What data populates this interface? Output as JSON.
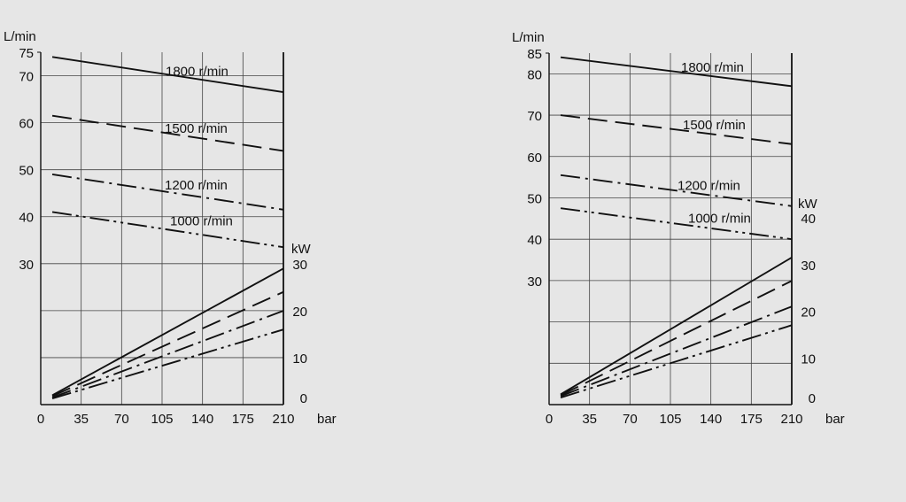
{
  "chart_data": [
    {
      "type": "line",
      "x_unit": "bar",
      "x_ticks": [
        0,
        35,
        70,
        105,
        140,
        175,
        210
      ],
      "xlim": [
        0,
        210
      ],
      "flow_unit": "L/min",
      "flow_ticks": [
        30,
        40,
        50,
        60,
        70,
        75
      ],
      "ylim": [
        0,
        75
      ],
      "power_unit": "kW",
      "power_ticks": [
        0,
        10,
        20,
        30
      ],
      "power_range": [
        0,
        30
      ],
      "grid": true,
      "flow_series": [
        {
          "name": "1800 r/min",
          "style": "solid",
          "x": [
            10,
            210
          ],
          "values": [
            74,
            66.5
          ]
        },
        {
          "name": "1500 r/min",
          "style": "dash",
          "x": [
            10,
            210
          ],
          "values": [
            61.5,
            54
          ]
        },
        {
          "name": "1200 r/min",
          "style": "dashdot",
          "x": [
            10,
            210
          ],
          "values": [
            49,
            41.5
          ]
        },
        {
          "name": "1000 r/min",
          "style": "dashdotdot",
          "x": [
            10,
            210
          ],
          "values": [
            41,
            33.5
          ]
        }
      ],
      "power_series": [
        {
          "style": "solid",
          "x": [
            10,
            210
          ],
          "values": [
            2,
            29
          ]
        },
        {
          "style": "dash",
          "x": [
            10,
            210
          ],
          "values": [
            1.8,
            24
          ]
        },
        {
          "style": "dashdot",
          "x": [
            10,
            210
          ],
          "values": [
            1.5,
            20
          ]
        },
        {
          "style": "dashdotdot",
          "x": [
            10,
            210
          ],
          "values": [
            1.3,
            16
          ]
        }
      ]
    },
    {
      "type": "line",
      "x_unit": "bar",
      "x_ticks": [
        0,
        35,
        70,
        105,
        140,
        175,
        210
      ],
      "xlim": [
        0,
        210
      ],
      "flow_unit": "L/min",
      "flow_ticks": [
        30,
        40,
        50,
        60,
        70,
        80,
        85
      ],
      "ylim": [
        0,
        85
      ],
      "power_unit": "kW",
      "power_ticks": [
        0,
        10,
        20,
        30,
        40
      ],
      "power_range": [
        0,
        40
      ],
      "grid": true,
      "flow_series": [
        {
          "name": "1800 r/min",
          "style": "solid",
          "x": [
            10,
            210
          ],
          "values": [
            84,
            77
          ]
        },
        {
          "name": "1500 r/min",
          "style": "dash",
          "x": [
            10,
            210
          ],
          "values": [
            70,
            63
          ]
        },
        {
          "name": "1200 r/min",
          "style": "dashdot",
          "x": [
            10,
            210
          ],
          "values": [
            55.5,
            48
          ]
        },
        {
          "name": "1000 r/min",
          "style": "dashdotdot",
          "x": [
            10,
            210
          ],
          "values": [
            47.5,
            40
          ]
        }
      ],
      "power_series": [
        {
          "style": "solid",
          "x": [
            10,
            210
          ],
          "values": [
            2.2,
            31.5
          ]
        },
        {
          "style": "dash",
          "x": [
            10,
            210
          ],
          "values": [
            2,
            26.5
          ]
        },
        {
          "style": "dashdot",
          "x": [
            10,
            210
          ],
          "values": [
            1.8,
            21
          ]
        },
        {
          "style": "dashdotdot",
          "x": [
            10,
            210
          ],
          "values": [
            1.5,
            17
          ]
        }
      ]
    }
  ]
}
